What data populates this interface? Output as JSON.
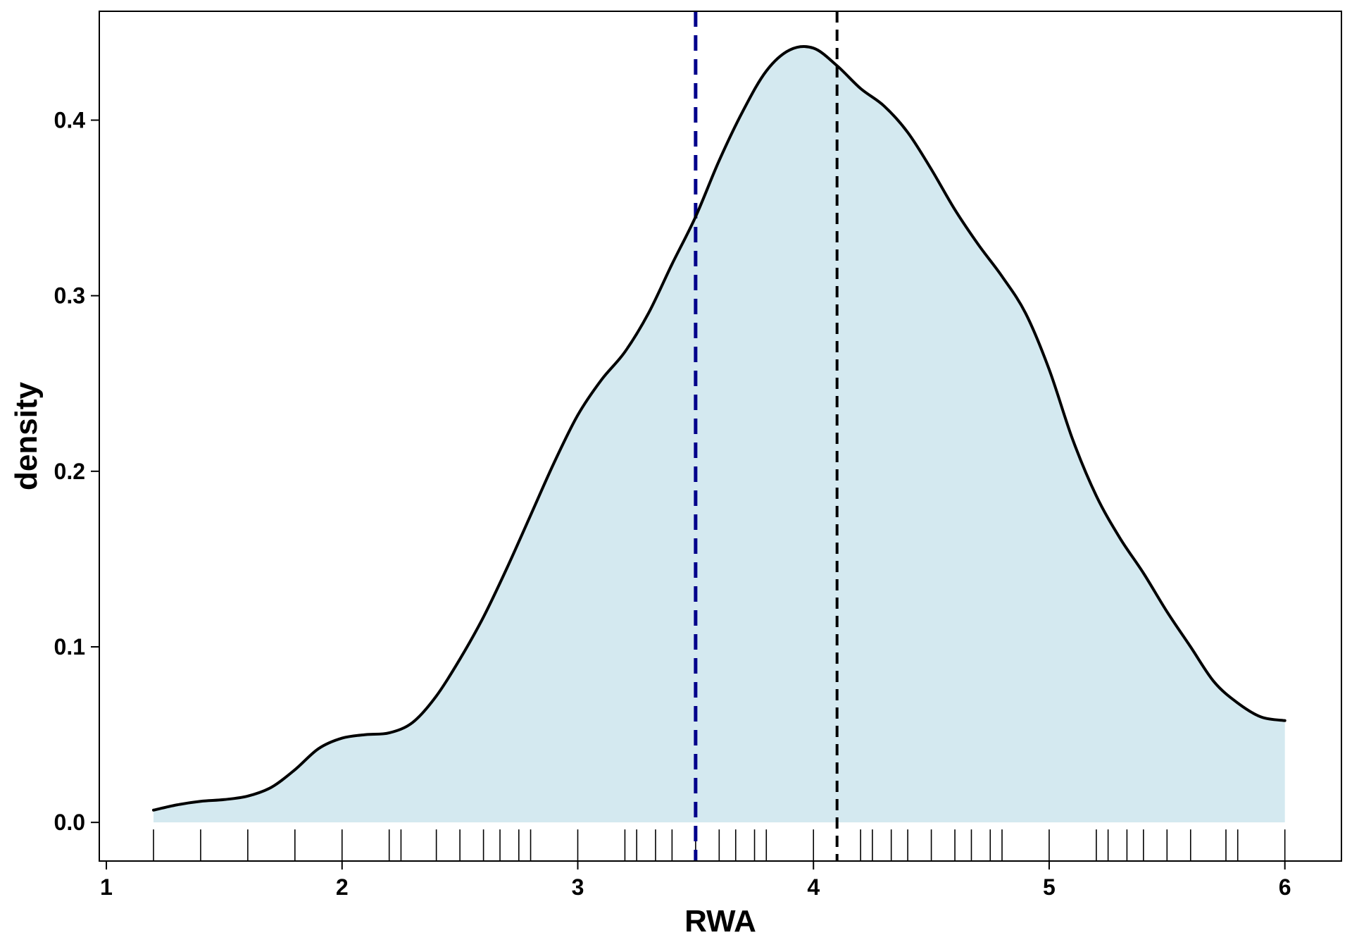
{
  "chart_data": {
    "type": "area",
    "title": "",
    "xlabel": "RWA",
    "ylabel": "density",
    "xlim": [
      0.97,
      6.24
    ],
    "ylim": [
      -0.022,
      0.462
    ],
    "xticks": [
      1,
      2,
      3,
      4,
      5,
      6
    ],
    "yticks": [
      0.0,
      0.1,
      0.2,
      0.3,
      0.4
    ],
    "xtick_labels": [
      "1",
      "2",
      "3",
      "4",
      "5",
      "6"
    ],
    "ytick_labels": [
      "0.0",
      "0.1",
      "0.2",
      "0.3",
      "0.4"
    ],
    "grid": false,
    "legend": "none",
    "fill_color": "#d4e9f0",
    "line_color": "#000000",
    "density_curve": {
      "x": [
        1.2,
        1.3,
        1.4,
        1.5,
        1.6,
        1.7,
        1.8,
        1.9,
        2.0,
        2.1,
        2.2,
        2.3,
        2.4,
        2.5,
        2.6,
        2.7,
        2.8,
        2.9,
        3.0,
        3.1,
        3.2,
        3.3,
        3.4,
        3.5,
        3.6,
        3.7,
        3.8,
        3.9,
        4.0,
        4.1,
        4.2,
        4.3,
        4.4,
        4.5,
        4.6,
        4.7,
        4.8,
        4.9,
        5.0,
        5.1,
        5.2,
        5.3,
        5.4,
        5.5,
        5.6,
        5.7,
        5.8,
        5.9,
        6.0
      ],
      "y": [
        0.007,
        0.01,
        0.012,
        0.013,
        0.015,
        0.02,
        0.03,
        0.042,
        0.048,
        0.05,
        0.051,
        0.057,
        0.072,
        0.093,
        0.117,
        0.145,
        0.175,
        0.205,
        0.232,
        0.252,
        0.268,
        0.29,
        0.318,
        0.345,
        0.377,
        0.405,
        0.428,
        0.44,
        0.441,
        0.431,
        0.418,
        0.408,
        0.393,
        0.372,
        0.349,
        0.329,
        0.311,
        0.29,
        0.258,
        0.218,
        0.186,
        0.162,
        0.142,
        0.12,
        0.1,
        0.08,
        0.068,
        0.06,
        0.058
      ]
    },
    "rug": [
      1.2,
      1.4,
      1.6,
      1.8,
      2.0,
      2.2,
      2.25,
      2.4,
      2.5,
      2.6,
      2.67,
      2.75,
      2.8,
      3.0,
      3.2,
      3.25,
      3.33,
      3.4,
      3.5,
      3.6,
      3.67,
      3.75,
      3.8,
      4.0,
      4.2,
      4.25,
      4.33,
      4.4,
      4.5,
      4.6,
      4.67,
      4.75,
      4.8,
      5.0,
      5.2,
      5.25,
      5.33,
      5.4,
      5.5,
      5.6,
      5.75,
      5.8,
      6.0
    ],
    "vlines": [
      {
        "x": 3.5,
        "color": "#00008b",
        "style": "dashed"
      },
      {
        "x": 4.1,
        "color": "#000000",
        "style": "dashed"
      }
    ]
  }
}
